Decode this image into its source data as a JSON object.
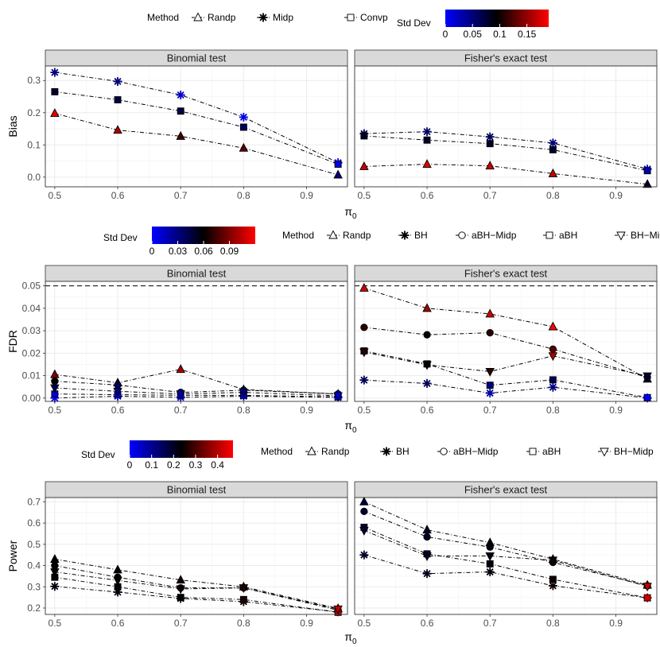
{
  "chart_data": [
    {
      "type": "line",
      "ylabel": "Bias",
      "xlabel": "π",
      "xlabel_sub": "0",
      "xlim": [
        0.485,
        0.965
      ],
      "ylim": [
        -0.03,
        0.345
      ],
      "xticks": [
        "0.5",
        "0.6",
        "0.7",
        "0.8",
        "0.9"
      ],
      "yticks": [
        "0.0",
        "0.1",
        "0.2",
        "0.3"
      ],
      "refline": null,
      "legend": {
        "method_title": "Method",
        "methods": [
          {
            "name": "Randp",
            "shape": "triangle"
          },
          {
            "name": "Midp",
            "shape": "star"
          },
          {
            "name": "Convp",
            "shape": "square"
          }
        ],
        "colorbar_title": "Std Dev",
        "colorbar_range": [
          0,
          0.19
        ],
        "colorbar_ticks": [
          "0",
          "0.05",
          "0.1",
          "0.15"
        ]
      },
      "panels": [
        {
          "strip": "Binomial test",
          "x": [
            0.5,
            0.6,
            0.7,
            0.8,
            0.95
          ],
          "series": [
            {
              "method": "Randp",
              "shape": "triangle",
              "values": [
                0.198,
                0.146,
                0.127,
                0.09,
                0.007
              ],
              "sd": [
                0.18,
                0.16,
                0.12,
                0.13,
                0.05
              ]
            },
            {
              "method": "Midp",
              "shape": "star",
              "values": [
                0.325,
                0.297,
                0.255,
                0.186,
                0.045
              ],
              "sd": [
                0.05,
                0.05,
                0.02,
                0.01,
                0.0
              ]
            },
            {
              "method": "Convp",
              "shape": "square",
              "values": [
                0.265,
                0.24,
                0.205,
                0.155,
                0.04
              ],
              "sd": [
                0.08,
                0.07,
                0.07,
                0.06,
                0.01
              ]
            }
          ]
        },
        {
          "strip": "Fisher's exact test",
          "x": [
            0.5,
            0.6,
            0.7,
            0.8,
            0.95
          ],
          "series": [
            {
              "method": "Randp",
              "shape": "triangle",
              "values": [
                0.033,
                0.04,
                0.035,
                0.011,
                -0.022
              ],
              "sd": [
                0.17,
                0.18,
                0.17,
                0.17,
                0.08
              ]
            },
            {
              "method": "Midp",
              "shape": "star",
              "values": [
                0.135,
                0.141,
                0.125,
                0.106,
                0.025
              ],
              "sd": [
                0.06,
                0.06,
                0.06,
                0.05,
                0.02
              ]
            },
            {
              "method": "Convp",
              "shape": "square",
              "values": [
                0.128,
                0.115,
                0.104,
                0.085,
                0.02
              ],
              "sd": [
                0.08,
                0.08,
                0.08,
                0.08,
                0.03
              ]
            }
          ]
        }
      ]
    },
    {
      "type": "line",
      "ylabel": "FDR",
      "xlabel": "π",
      "xlabel_sub": "0",
      "xlim": [
        0.485,
        0.965
      ],
      "ylim": [
        -0.0015,
        0.052
      ],
      "xticks": [
        "0.5",
        "0.6",
        "0.7",
        "0.8",
        "0.9"
      ],
      "yticks": [
        "0.00",
        "0.01",
        "0.02",
        "0.03",
        "0.04",
        "0.05"
      ],
      "refline": 0.05,
      "legend": {
        "method_title": "Method",
        "methods": [
          {
            "name": "Randp",
            "shape": "triangle"
          },
          {
            "name": "BH",
            "shape": "star"
          },
          {
            "name": "aBH−Midp",
            "shape": "circle"
          },
          {
            "name": "aBH",
            "shape": "square"
          },
          {
            "name": "BH−Midp",
            "shape": "triangle-down"
          }
        ],
        "colorbar_title": "Std Dev",
        "colorbar_range": [
          0,
          0.12
        ],
        "colorbar_ticks": [
          "0",
          "0.03",
          "0.06",
          "0.09"
        ]
      },
      "panels": [
        {
          "strip": "Binomial test",
          "x": [
            0.5,
            0.6,
            0.7,
            0.8,
            0.95
          ],
          "series": [
            {
              "method": "Randp",
              "shape": "triangle",
              "values": [
                0.0105,
                0.0068,
                0.0128,
                0.0038,
                0.0018
              ],
              "sd": [
                0.09,
                0.06,
                0.1,
                0.05,
                0.03
              ]
            },
            {
              "method": "BH",
              "shape": "star",
              "values": [
                0.0,
                0.0008,
                0.0003,
                0.0008,
                0.0003
              ],
              "sd": [
                0.0,
                0.01,
                0.0,
                0.01,
                0.0
              ]
            },
            {
              "method": "aBH−Midp",
              "shape": "circle",
              "values": [
                0.0075,
                0.0058,
                0.0025,
                0.0035,
                0.0018
              ],
              "sd": [
                0.06,
                0.04,
                0.03,
                0.04,
                0.02
              ]
            },
            {
              "method": "aBH",
              "shape": "square",
              "values": [
                0.0018,
                0.0015,
                0.0012,
                0.0012,
                0.0005
              ],
              "sd": [
                0.01,
                0.01,
                0.01,
                0.01,
                0.0
              ]
            },
            {
              "method": "BH−Midp",
              "shape": "triangle-down",
              "values": [
                0.0045,
                0.003,
                0.0018,
                0.0025,
                0.001
              ],
              "sd": [
                0.04,
                0.03,
                0.02,
                0.03,
                0.01
              ]
            }
          ]
        },
        {
          "strip": "Fisher's exact test",
          "x": [
            0.5,
            0.6,
            0.7,
            0.8,
            0.95
          ],
          "series": [
            {
              "method": "Randp",
              "shape": "triangle",
              "values": [
                0.049,
                0.04,
                0.0375,
                0.0318,
                0.0085
              ],
              "sd": [
                0.11,
                0.1,
                0.11,
                0.12,
                0.05
              ]
            },
            {
              "method": "BH",
              "shape": "star",
              "values": [
                0.008,
                0.0065,
                0.0022,
                0.0048,
                0.0
              ],
              "sd": [
                0.04,
                0.04,
                0.02,
                0.03,
                0.0
              ]
            },
            {
              "method": "aBH−Midp",
              "shape": "circle",
              "values": [
                0.0315,
                0.0282,
                0.0291,
                0.0218,
                0.0092
              ],
              "sd": [
                0.07,
                0.06,
                0.07,
                0.08,
                0.04
              ]
            },
            {
              "method": "aBH",
              "shape": "square",
              "values": [
                0.021,
                0.0152,
                0.0057,
                0.0081,
                0.0002
              ],
              "sd": [
                0.06,
                0.05,
                0.03,
                0.04,
                0.0
              ]
            },
            {
              "method": "BH−Midp",
              "shape": "triangle-down",
              "values": [
                0.0205,
                0.0148,
                0.0118,
                0.0188,
                0.0098
              ],
              "sd": [
                0.07,
                0.06,
                0.07,
                0.1,
                0.05
              ]
            }
          ]
        }
      ]
    },
    {
      "type": "line",
      "ylabel": "Power",
      "xlabel": "π",
      "xlabel_sub": "0",
      "xlim": [
        0.485,
        0.965
      ],
      "ylim": [
        0.17,
        0.72
      ],
      "xticks": [
        "0.5",
        "0.6",
        "0.7",
        "0.8",
        "0.9"
      ],
      "yticks": [
        "0.2",
        "0.3",
        "0.4",
        "0.5",
        "0.6",
        "0.7"
      ],
      "refline": null,
      "legend": {
        "method_title": "Method",
        "methods": [
          {
            "name": "Randp",
            "shape": "triangle"
          },
          {
            "name": "BH",
            "shape": "star"
          },
          {
            "name": "aBH−Midp",
            "shape": "circle"
          },
          {
            "name": "aBH",
            "shape": "square"
          },
          {
            "name": "BH−Midp",
            "shape": "triangle-down"
          }
        ],
        "colorbar_title": "Std Dev",
        "colorbar_range": [
          0,
          0.47
        ],
        "colorbar_ticks": [
          "0",
          "0.1",
          "0.2",
          "0.3",
          "0.4"
        ]
      },
      "panels": [
        {
          "strip": "Binomial test",
          "x": [
            0.5,
            0.6,
            0.7,
            0.8,
            0.95
          ],
          "series": [
            {
              "method": "Randp",
              "shape": "triangle",
              "values": [
                0.43,
                0.38,
                0.332,
                0.3,
                0.198
              ],
              "sd": [
                0.24,
                0.24,
                0.25,
                0.28,
                0.42
              ]
            },
            {
              "method": "BH",
              "shape": "star",
              "values": [
                0.302,
                0.275,
                0.245,
                0.23,
                0.182
              ],
              "sd": [
                0.22,
                0.22,
                0.23,
                0.26,
                0.4
              ]
            },
            {
              "method": "aBH−Midp",
              "shape": "circle",
              "values": [
                0.4,
                0.345,
                0.295,
                0.295,
                0.19
              ],
              "sd": [
                0.24,
                0.24,
                0.25,
                0.27,
                0.41
              ]
            },
            {
              "method": "aBH",
              "shape": "square",
              "values": [
                0.345,
                0.3,
                0.25,
                0.24,
                0.18
              ],
              "sd": [
                0.23,
                0.23,
                0.24,
                0.26,
                0.4
              ]
            },
            {
              "method": "BH−Midp",
              "shape": "triangle-down",
              "values": [
                0.37,
                0.33,
                0.29,
                0.295,
                0.195
              ],
              "sd": [
                0.24,
                0.24,
                0.25,
                0.27,
                0.41
              ]
            }
          ]
        },
        {
          "strip": "Fisher's exact test",
          "x": [
            0.5,
            0.6,
            0.7,
            0.8,
            0.95
          ],
          "series": [
            {
              "method": "Randp",
              "shape": "triangle",
              "values": [
                0.7,
                0.568,
                0.508,
                0.43,
                0.308
              ],
              "sd": [
                0.18,
                0.2,
                0.22,
                0.25,
                0.42
              ]
            },
            {
              "method": "BH",
              "shape": "star",
              "values": [
                0.45,
                0.362,
                0.37,
                0.305,
                0.248
              ],
              "sd": [
                0.2,
                0.21,
                0.23,
                0.25,
                0.42
              ]
            },
            {
              "method": "aBH−Midp",
              "shape": "circle",
              "values": [
                0.655,
                0.535,
                0.487,
                0.415,
                0.305
              ],
              "sd": [
                0.19,
                0.2,
                0.22,
                0.25,
                0.42
              ]
            },
            {
              "method": "aBH",
              "shape": "square",
              "values": [
                0.58,
                0.455,
                0.408,
                0.335,
                0.248
              ],
              "sd": [
                0.19,
                0.2,
                0.22,
                0.25,
                0.42
              ]
            },
            {
              "method": "BH−Midp",
              "shape": "triangle-down",
              "values": [
                0.565,
                0.445,
                0.445,
                0.425,
                0.302
              ],
              "sd": [
                0.19,
                0.2,
                0.22,
                0.25,
                0.42
              ]
            }
          ]
        }
      ]
    }
  ]
}
